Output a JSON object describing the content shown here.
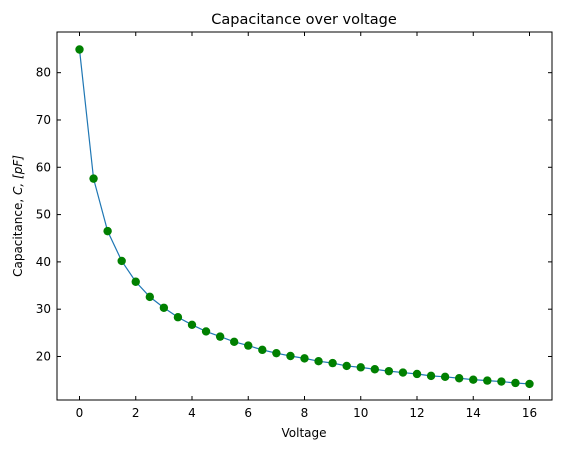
{
  "chart_data": {
    "type": "line",
    "title": "Capacitance over voltage",
    "xlabel": "Voltage",
    "ylabel_prefix": "Capacitance, ",
    "ylabel_math": "C, [pF]",
    "xlim": [
      -0.8,
      16.8
    ],
    "ylim": [
      10.8,
      88.6
    ],
    "xticks": [
      0,
      2,
      4,
      6,
      8,
      10,
      12,
      14,
      16
    ],
    "yticks": [
      20,
      30,
      40,
      50,
      60,
      70,
      80
    ],
    "grid": false,
    "line_color": "#1f77b4",
    "marker_color": "#008000",
    "x": [
      0,
      0.5,
      1,
      1.5,
      2,
      2.5,
      3,
      3.5,
      4,
      4.5,
      5,
      5.5,
      6,
      6.5,
      7,
      7.5,
      8,
      8.5,
      9,
      9.5,
      10,
      10.5,
      11,
      11.5,
      12,
      12.5,
      13,
      13.5,
      14,
      14.5,
      15,
      15.5,
      16
    ],
    "y": [
      84.9,
      57.6,
      46.5,
      40.2,
      35.8,
      32.6,
      30.3,
      28.3,
      26.7,
      25.3,
      24.2,
      23.1,
      22.3,
      21.4,
      20.7,
      20.1,
      19.6,
      19.0,
      18.6,
      18.0,
      17.7,
      17.3,
      16.9,
      16.6,
      16.3,
      15.9,
      15.7,
      15.4,
      15.1,
      14.9,
      14.7,
      14.4,
      14.2
    ]
  }
}
